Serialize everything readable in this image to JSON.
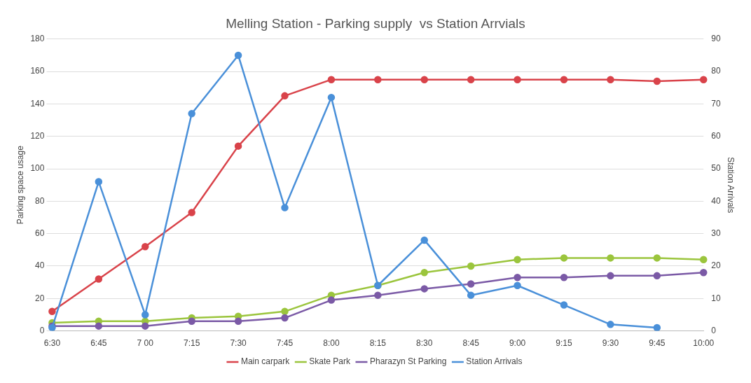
{
  "chart_data": {
    "type": "line",
    "title": "Melling Station - Parking supply  vs Station Arrvials",
    "ylabel": "Parking space usage",
    "y2label": "Station Arrivals",
    "categories": [
      "6:30",
      "6:45",
      "7 00",
      "7:15",
      "7:30",
      "7:45",
      "8:00",
      "8:15",
      "8:30",
      "8:45",
      "9:00",
      "9:15",
      "9:30",
      "9:45",
      "10:00"
    ],
    "series": [
      {
        "name": "Main carpark",
        "color": "#d9434a",
        "values": [
          12,
          32,
          52,
          73,
          114,
          145,
          155,
          155,
          155,
          155,
          155,
          155,
          155,
          154,
          155
        ]
      },
      {
        "name": "Skate Park",
        "color": "#9bc53d",
        "values": [
          5,
          6,
          6,
          8,
          9,
          12,
          22,
          28,
          36,
          40,
          44,
          45,
          45,
          45,
          44
        ]
      },
      {
        "name": "Pharazyn St Parking",
        "color": "#7b5aa6",
        "values": [
          3,
          3,
          3,
          6,
          6,
          8,
          19,
          22,
          26,
          29,
          33,
          33,
          34,
          34,
          36
        ]
      },
      {
        "name": "Station Arrivals",
        "color": "#4a90d9",
        "axis": "y2",
        "values": [
          1,
          46,
          5,
          67,
          85,
          38,
          72,
          14,
          28,
          11,
          14,
          8,
          2,
          1,
          null
        ]
      }
    ],
    "ylim": [
      0,
      180
    ],
    "yticks": [
      0,
      20,
      40,
      60,
      80,
      100,
      120,
      140,
      160,
      180
    ],
    "y2lim": [
      0,
      90
    ],
    "y2ticks": [
      0,
      10,
      20,
      30,
      40,
      50,
      60,
      70,
      80,
      90
    ],
    "grid": "y",
    "legend": "bottom",
    "marker": "circle",
    "line_style": "solid"
  }
}
